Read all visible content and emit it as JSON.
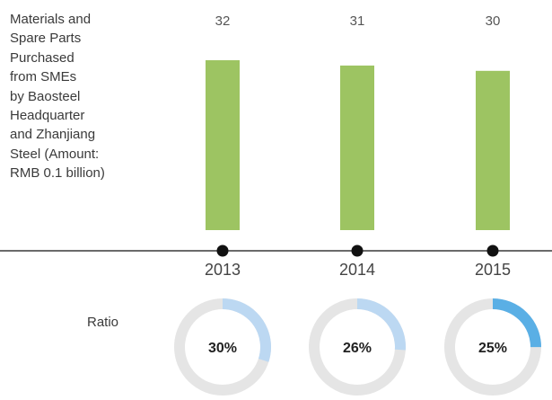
{
  "chart_data": {
    "type": "bar",
    "title": "Materials and\nSpare Parts\nPurchased\nfrom SMEs\nby Baosteel\nHeadquarter\nand Zhanjiang\nSteel (Amount:\nRMB 0.1 billion)",
    "categories": [
      "2013",
      "2014",
      "2015"
    ],
    "values": [
      32,
      31,
      30
    ],
    "value_labels": [
      "32",
      "31",
      "30"
    ],
    "ratio_label": "Ratio",
    "ratios": [
      30,
      26,
      25
    ],
    "ratio_labels": [
      "30%",
      "26%",
      "25%"
    ],
    "colors": {
      "bar": "#9dc462",
      "axis": "#111111",
      "ring_track": "#e5e5e5",
      "ring_light": "#bcd8f2",
      "ring_highlight": "#5aafe5"
    }
  }
}
